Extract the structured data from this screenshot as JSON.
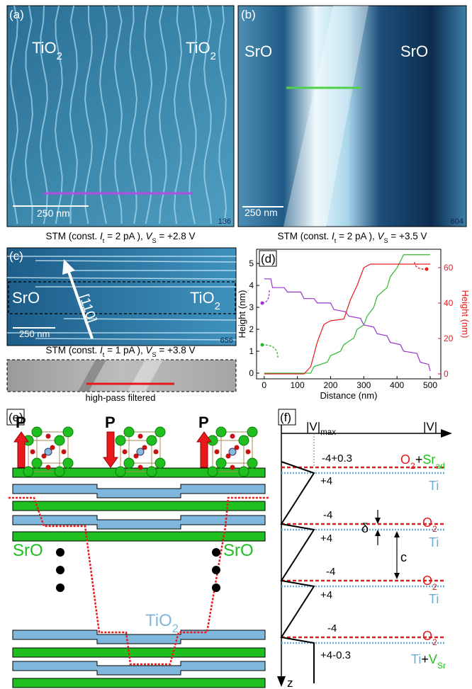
{
  "panels": {
    "a": {
      "label": "(a)",
      "left": [
        {
          "text": "TiO"
        },
        {
          "text": "2",
          "style": "sub"
        }
      ],
      "right": [
        {
          "text": "TiO"
        },
        {
          "text": "2",
          "style": "sub"
        }
      ],
      "scale": "250 nm",
      "id": "136",
      "caption": [
        {
          "text": "STM (const. "
        },
        {
          "text": "I",
          "style": "italic"
        },
        {
          "text": "t",
          "style": "sub"
        },
        {
          "text": " = 2 pA ), "
        },
        {
          "text": "V",
          "style": "italic"
        },
        {
          "text": "S",
          "style": "sub"
        },
        {
          "text": " = +2.8 V"
        }
      ]
    },
    "b": {
      "label": "(b)",
      "left": "SrO",
      "right": "SrO",
      "scale": "250 nm",
      "id": "604",
      "caption": [
        {
          "text": "STM (const. "
        },
        {
          "text": "I",
          "style": "italic"
        },
        {
          "text": "t",
          "style": "sub"
        },
        {
          "text": " = 2 pA ), "
        },
        {
          "text": "V",
          "style": "italic"
        },
        {
          "text": "S",
          "style": "sub"
        },
        {
          "text": " = +3.5 V"
        }
      ]
    },
    "c": {
      "label": "(c)",
      "left": "SrO",
      "right": [
        {
          "text": "TiO"
        },
        {
          "text": "2",
          "style": "sub"
        }
      ],
      "direction": "[110]",
      "scale": "250 nm",
      "id": "656",
      "caption": [
        {
          "text": "STM (const. "
        },
        {
          "text": "I",
          "style": "italic"
        },
        {
          "text": "t",
          "style": "sub"
        },
        {
          "text": " = 1 pA ), "
        },
        {
          "text": "V",
          "style": "italic"
        },
        {
          "text": "S",
          "style": "sub"
        },
        {
          "text": " = +3.8 V"
        }
      ],
      "inset_caption": "high-pass filtered"
    },
    "e": {
      "label": "(e)",
      "polarization": [
        "P",
        "P",
        "P"
      ],
      "left": "SrO",
      "right": "SrO",
      "center": [
        {
          "text": "TiO"
        },
        {
          "text": "2",
          "style": "sub"
        }
      ]
    },
    "f": {
      "label": "(f)",
      "vmax": [
        {
          "text": "|V|"
        },
        {
          "text": "max",
          "style": "sub"
        }
      ],
      "axis_x": "|V|",
      "axis_z": "z",
      "delta": "δ",
      "c": "c",
      "charges": [
        "-4+0.3",
        "+4",
        "-4",
        "+4",
        "-4",
        "+4",
        "-4",
        "+4-0.3"
      ],
      "layers": [
        [
          {
            "text": "O",
            "color": "#e8191c"
          },
          {
            "text": "2",
            "style": "sub",
            "color": "#e8191c"
          },
          {
            "text": "+"
          },
          {
            "text": "Sr",
            "color": "#1fbf1f"
          },
          {
            "text": "ad",
            "style": "sub",
            "color": "#1fbf1f"
          }
        ],
        [
          {
            "text": "Ti",
            "color": "#6aaed6"
          }
        ],
        [
          {
            "text": "O",
            "color": "#e8191c"
          },
          {
            "text": "2",
            "style": "sub",
            "color": "#e8191c"
          }
        ],
        [
          {
            "text": "Ti",
            "color": "#6aaed6"
          }
        ],
        [
          {
            "text": "O",
            "color": "#e8191c"
          },
          {
            "text": "2",
            "style": "sub",
            "color": "#e8191c"
          }
        ],
        [
          {
            "text": "Ti",
            "color": "#6aaed6"
          }
        ],
        [
          {
            "text": "O",
            "color": "#e8191c"
          },
          {
            "text": "2",
            "style": "sub",
            "color": "#e8191c"
          }
        ],
        [
          {
            "text": "Ti",
            "color": "#6aaed6"
          },
          {
            "text": "+"
          },
          {
            "text": "V",
            "color": "#1fbf1f"
          },
          {
            "text": "Sr",
            "style": "sub",
            "color": "#1fbf1f"
          }
        ]
      ]
    }
  },
  "chart_data": {
    "type": "line",
    "label": "(d)",
    "xlabel": "Distance (nm)",
    "ylabel": "Height (nm)",
    "y2label": "Height (nm)",
    "xlim": [
      -23,
      532
    ],
    "ylim": [
      -0.26,
      5.65
    ],
    "y2lim": [
      -2.8,
      70.4
    ],
    "xticks": [
      0,
      100,
      200,
      300,
      400,
      500
    ],
    "yticks": [
      0,
      1,
      2,
      3,
      4,
      5
    ],
    "y2ticks": [
      0,
      20,
      40,
      60
    ],
    "series": [
      {
        "color": "#9933cc",
        "axis": "y",
        "x": [
          0,
          20,
          25,
          60,
          70,
          110,
          120,
          150,
          160,
          200,
          210,
          245,
          255,
          290,
          300,
          330,
          340,
          370,
          380,
          410,
          420,
          460,
          470,
          495,
          500
        ],
        "values": [
          4.3,
          4.3,
          3.9,
          3.9,
          3.7,
          3.7,
          3.4,
          3.4,
          3.2,
          3.2,
          2.9,
          2.8,
          2.6,
          2.5,
          2.2,
          2.1,
          1.8,
          1.7,
          1.4,
          1.3,
          1.0,
          0.9,
          0.5,
          0.4,
          0.1
        ]
      },
      {
        "color": "#2db82d",
        "axis": "y",
        "x": [
          0,
          140,
          150,
          190,
          200,
          230,
          240,
          270,
          280,
          300,
          310,
          330,
          340,
          370,
          380,
          400,
          420,
          500
        ],
        "values": [
          0,
          0,
          0.3,
          0.5,
          0.8,
          1.0,
          1.3,
          1.6,
          2.0,
          2.2,
          2.6,
          3.0,
          3.5,
          3.9,
          4.4,
          4.8,
          5.4,
          5.4
        ]
      },
      {
        "color": "#e8191c",
        "axis": "y2",
        "x": [
          0,
          120,
          140,
          160,
          180,
          200,
          240,
          260,
          280,
          300,
          320,
          500
        ],
        "values": [
          0,
          0,
          4,
          18,
          28,
          30,
          31,
          42,
          50,
          60,
          62,
          62
        ]
      }
    ]
  }
}
